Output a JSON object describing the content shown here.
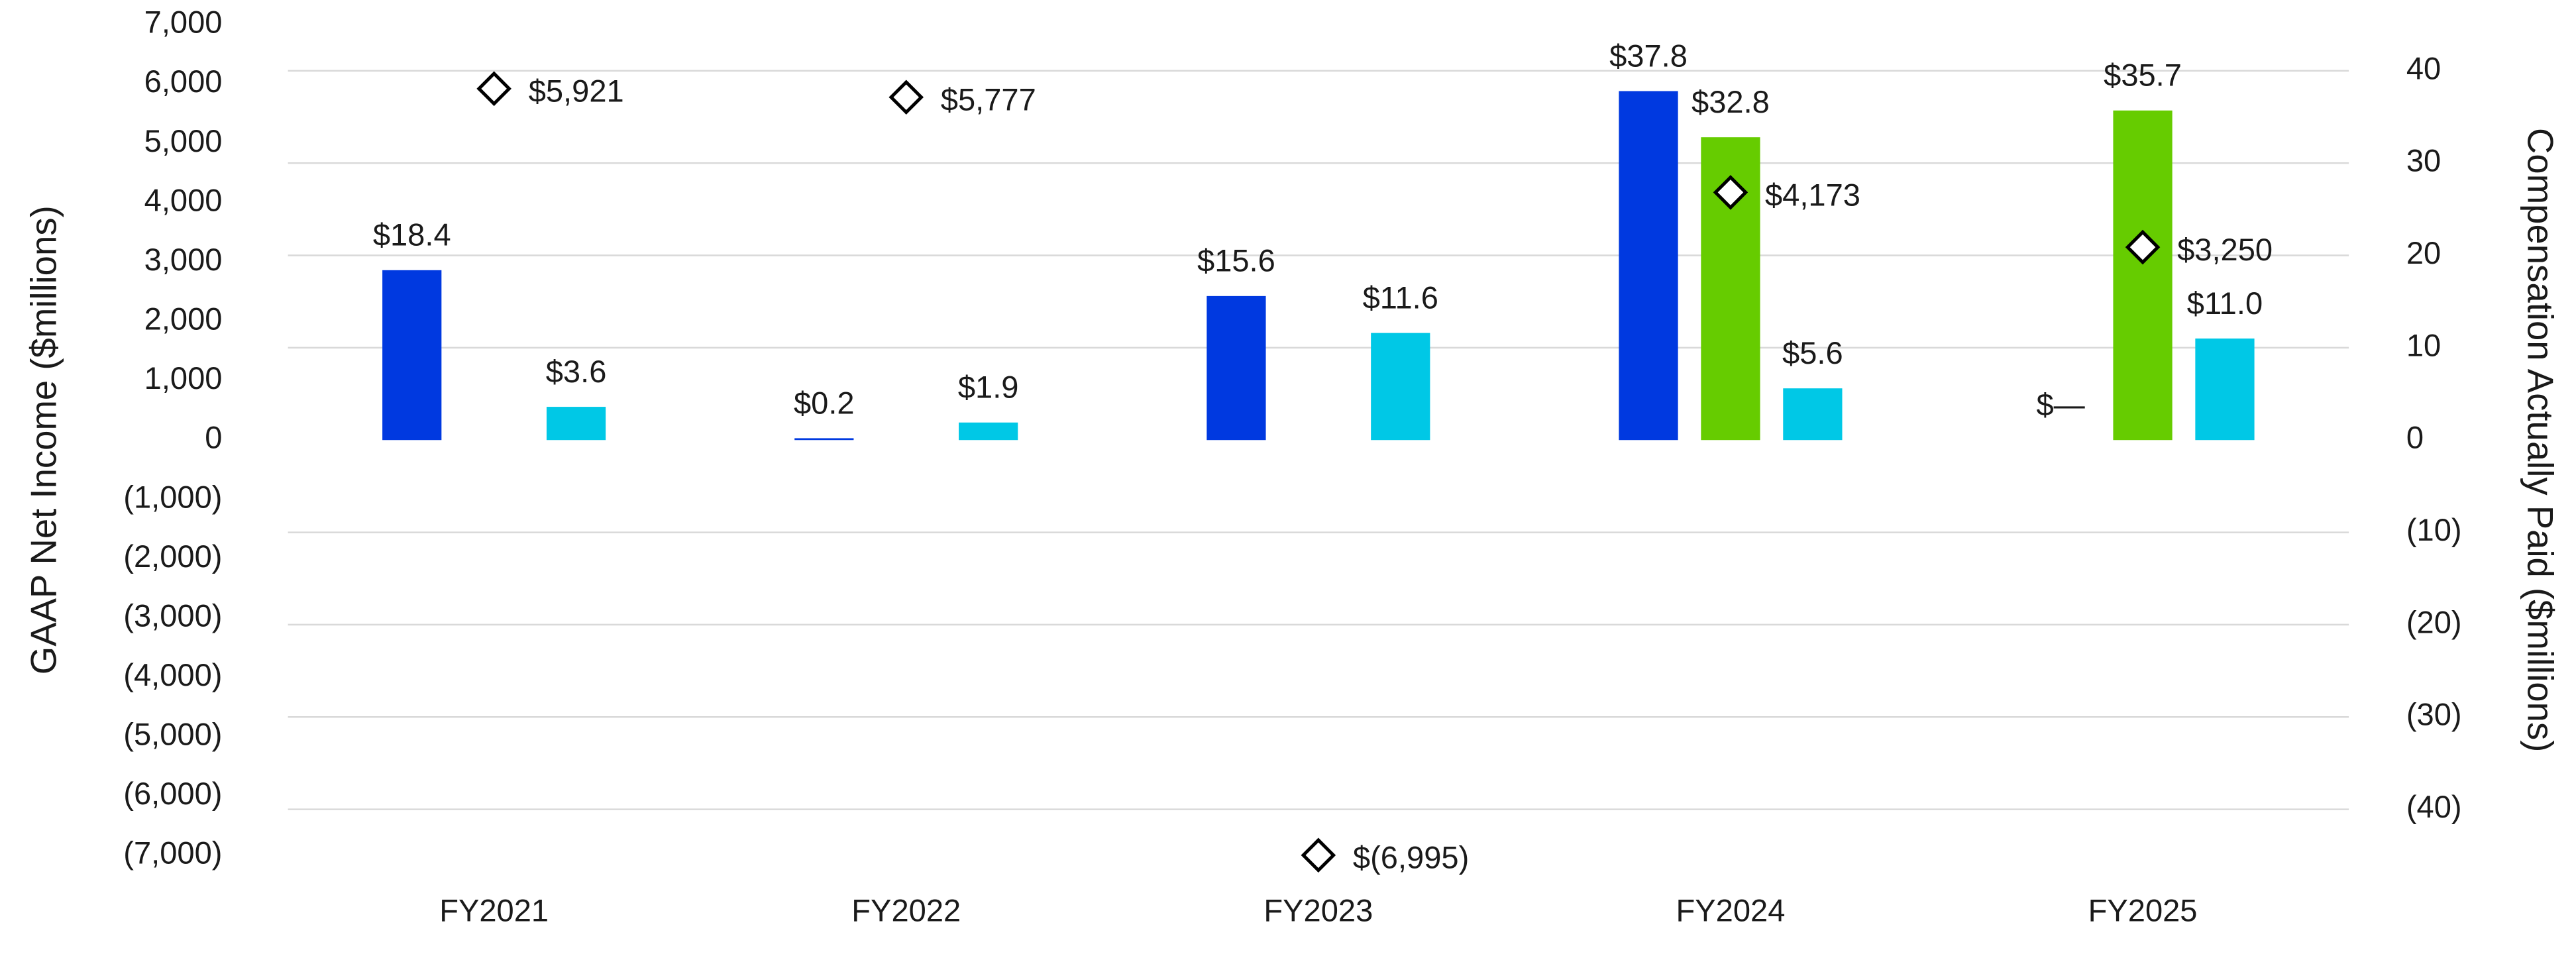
{
  "chart_data": {
    "type": "bar",
    "y_label": "GAAP Net Income ($millions)",
    "y2_label": "Compensation Actually Paid ($millions)",
    "categories": [
      "FY2021",
      "FY2022",
      "FY2023",
      "FY2024",
      "FY2025"
    ],
    "ylim": [
      -7000,
      7000
    ],
    "yticks": [
      {
        "value": 7000,
        "label": "7,000"
      },
      {
        "value": 6000,
        "label": "6,000"
      },
      {
        "value": 5000,
        "label": "5,000"
      },
      {
        "value": 4000,
        "label": "4,000"
      },
      {
        "value": 3000,
        "label": "3,000"
      },
      {
        "value": 2000,
        "label": "2,000"
      },
      {
        "value": 1000,
        "label": "1,000"
      },
      0,
      {
        "value": -1000,
        "label": "(1,000)"
      },
      {
        "value": -2000,
        "label": "(2,000)"
      },
      {
        "value": -3000,
        "label": "(3,000)"
      },
      {
        "value": -4000,
        "label": "(4,000)"
      },
      {
        "value": -5000,
        "label": "(5,000)"
      },
      {
        "value": -6000,
        "label": "(6,000)"
      },
      {
        "value": -7000,
        "label": "(7,000)"
      }
    ],
    "y2lim": [
      -45,
      45
    ],
    "y2ticks": [
      40,
      30,
      20,
      10,
      0,
      {
        "value": -10,
        "label": "(10)"
      },
      {
        "value": -20,
        "label": "(20)"
      },
      {
        "value": -30,
        "label": "(30)"
      },
      {
        "value": -40,
        "label": "(40)"
      }
    ],
    "grid": true,
    "series": [
      {
        "type": "bar",
        "axis": "y2",
        "color": "#0039e0",
        "values": [
          18.4,
          0.2,
          15.6,
          37.8,
          0
        ],
        "value_labels": [
          "$18.4",
          "$0.2",
          "$15.6",
          "$37.8",
          "$—"
        ]
      },
      {
        "type": "bar",
        "axis": "y2",
        "color": "#66cc00",
        "values": [
          null,
          null,
          null,
          32.8,
          35.7
        ],
        "value_labels": [
          null,
          null,
          null,
          "$32.8",
          "$35.7"
        ]
      },
      {
        "type": "bar",
        "axis": "y2",
        "color": "#00c8e6",
        "values": [
          3.6,
          1.9,
          11.6,
          5.6,
          11.0
        ],
        "value_labels": [
          "$3.6",
          "$1.9",
          "$11.6",
          "$5.6",
          "$11.0"
        ]
      },
      {
        "type": "scatter",
        "color": "#000000",
        "values": [
          5921,
          5777,
          -6995,
          4173,
          3250
        ],
        "value_labels": [
          "$5,921",
          "$5,777",
          "$(6,995)",
          "$4,173",
          "$3,250"
        ]
      }
    ]
  }
}
